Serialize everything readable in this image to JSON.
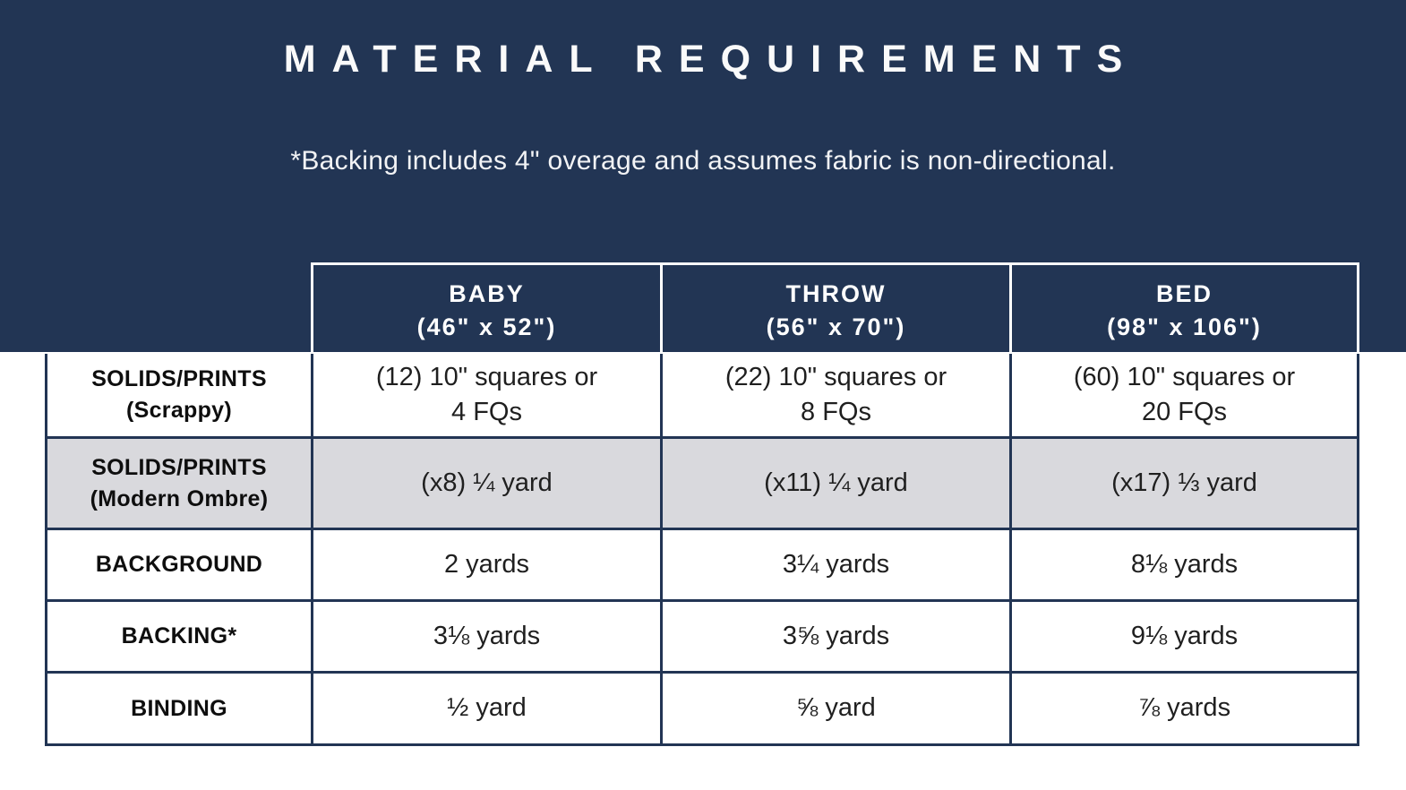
{
  "header": {
    "title": "MATERIAL REQUIREMENTS",
    "subtitle": "*Backing includes 4\" overage and assumes fabric is non-directional."
  },
  "colors": {
    "navy": "#223554",
    "shaded_row": "#d9d9dd",
    "header_border": "#ffffff",
    "body_border": "#223554",
    "title_text": "#fafafa",
    "body_text": "#1f1f1f"
  },
  "table": {
    "columns": [
      {
        "name": "BABY",
        "size": "(46\" x 52\")"
      },
      {
        "name": "THROW",
        "size": "(56\" x 70\")"
      },
      {
        "name": "BED",
        "size": "(98\" x 106\")"
      }
    ],
    "rows": [
      {
        "label": "SOLIDS/PRINTS",
        "sublabel": "(Scrappy)",
        "shaded": false,
        "cells": [
          {
            "lines": [
              "(12) 10\" squares or",
              "4 FQs"
            ]
          },
          {
            "lines": [
              "(22) 10\" squares or",
              "8 FQs"
            ]
          },
          {
            "lines": [
              "(60) 10\" squares or",
              "20 FQs"
            ]
          }
        ]
      },
      {
        "label": "SOLIDS/PRINTS",
        "sublabel": "(Modern Ombre)",
        "shaded": true,
        "cells": [
          {
            "lines": [
              "(x8) ¼ yard"
            ]
          },
          {
            "lines": [
              "(x11) ¼ yard"
            ]
          },
          {
            "lines": [
              "(x17) ⅓ yard"
            ]
          }
        ]
      },
      {
        "label": "BACKGROUND",
        "sublabel": "",
        "shaded": false,
        "cells": [
          {
            "lines": [
              "2 yards"
            ]
          },
          {
            "lines": [
              "3¼ yards"
            ]
          },
          {
            "lines": [
              "8⅛ yards"
            ]
          }
        ]
      },
      {
        "label": "BACKING*",
        "sublabel": "",
        "shaded": false,
        "cells": [
          {
            "lines": [
              "3⅛ yards"
            ]
          },
          {
            "lines": [
              "3⅝ yards"
            ]
          },
          {
            "lines": [
              "9⅛ yards"
            ]
          }
        ]
      },
      {
        "label": "BINDING",
        "sublabel": "",
        "shaded": false,
        "cells": [
          {
            "lines": [
              "½ yard"
            ]
          },
          {
            "lines": [
              "⅝ yard"
            ]
          },
          {
            "lines": [
              "⅞ yards"
            ]
          }
        ]
      }
    ]
  }
}
